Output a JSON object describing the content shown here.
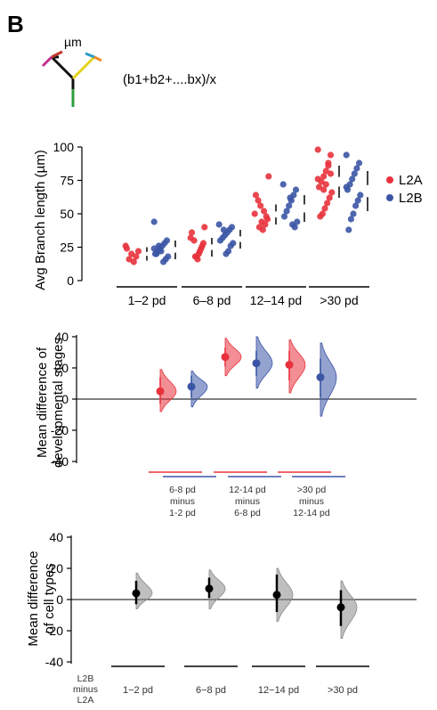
{
  "panel_label": "B",
  "schematic": {
    "unit": "µm",
    "formula": "(b1+b2+....bx)/x"
  },
  "colors": {
    "l2a": "#e8323c",
    "l2b": "#3b55a5",
    "gray": "#b5b5b5",
    "black": "#000000"
  },
  "chart_data": [
    {
      "type": "scatter",
      "title": "",
      "ylabel": "Avg Branch length (µm)",
      "ylim": [
        0,
        100
      ],
      "yticks": [
        0,
        25,
        50,
        75,
        100
      ],
      "categories": [
        "1–2 pd",
        "6–8 pd",
        "12–14 pd",
        ">30 pd"
      ],
      "legend_position": "right",
      "series": [
        {
          "name": "L2A",
          "color": "#e8323c",
          "values": [
            [
              26,
              22,
              18,
              14,
              20,
              16,
              24
            ],
            [
              32,
              28,
              24,
              20,
              18,
              30,
              36,
              40,
              26,
              22,
              16,
              18
            ],
            [
              50,
              46,
              42,
              38,
              56,
              60,
              64,
              78,
              48,
              52,
              44,
              40
            ],
            [
              98,
              94,
              86,
              82,
              78,
              74,
              70,
              66,
              62,
              58,
              54,
              50,
              48,
              76,
              80,
              88,
              72,
              68
            ]
          ],
          "whisker": [
            [
              15,
              25
            ],
            [
              18,
              32
            ],
            [
              42,
              57
            ],
            [
              62,
              86
            ]
          ]
        },
        {
          "name": "L2B",
          "color": "#3b55a5",
          "values": [
            [
              44,
              30,
              28,
              26,
              24,
              22,
              20,
              18,
              16,
              14,
              22,
              26,
              20,
              24
            ],
            [
              42,
              40,
              38,
              36,
              34,
              32,
              30,
              28,
              26,
              22,
              20,
              38
            ],
            [
              72,
              68,
              64,
              60,
              56,
              52,
              48,
              44,
              40,
              42,
              62
            ],
            [
              94,
              88,
              84,
              80,
              76,
              72,
              68,
              64,
              60,
              56,
              50,
              46,
              38,
              70
            ]
          ],
          "whisker": [
            [
              16,
              30
            ],
            [
              24,
              38
            ],
            [
              44,
              64
            ],
            [
              52,
              82
            ]
          ]
        }
      ]
    },
    {
      "type": "scatter",
      "title": "",
      "ylabel_lines": [
        "Mean difference of",
        "developmental stages"
      ],
      "ylim": [
        -40,
        40
      ],
      "yticks": [
        40,
        20,
        0,
        -20,
        -40
      ],
      "comparisons": [
        {
          "label_lines": [
            "6-8 pd",
            "minus",
            "1-2 pd"
          ],
          "L2A": {
            "mean": 5,
            "ci": [
              -3,
              14
            ],
            "dist": [
              -8,
              19
            ]
          },
          "L2B": {
            "mean": 8,
            "ci": [
              1,
              15
            ],
            "dist": [
              -5,
              18
            ]
          }
        },
        {
          "label_lines": [
            "12-14 pd",
            "minus",
            "6-8 pd"
          ],
          "L2A": {
            "mean": 27,
            "ci": [
              21,
              33
            ],
            "dist": [
              15,
              39
            ]
          },
          "L2B": {
            "mean": 23,
            "ci": [
              15,
              31
            ],
            "dist": [
              7,
              40
            ]
          }
        },
        {
          "label_lines": [
            ">30 pd",
            "minus",
            "12-14 pd"
          ],
          "L2A": {
            "mean": 22,
            "ci": [
              12,
              31
            ],
            "dist": [
              4,
              38
            ]
          },
          "L2B": {
            "mean": 14,
            "ci": [
              1,
              26
            ],
            "dist": [
              -11,
              36
            ]
          }
        }
      ]
    },
    {
      "type": "scatter",
      "title": "",
      "ylabel_lines": [
        "Mean difference",
        "of cell types"
      ],
      "ylim": [
        -40,
        40
      ],
      "yticks": [
        40,
        20,
        0,
        -20,
        -40
      ],
      "row_label_lines": [
        "L2B",
        "minus",
        "L2A"
      ],
      "categories": [
        "1−2 pd",
        "6−8 pd",
        "12−14 pd",
        ">30 pd"
      ],
      "values": [
        {
          "mean": 4,
          "ci": [
            -3,
            12
          ],
          "dist": [
            -6,
            17
          ]
        },
        {
          "mean": 7,
          "ci": [
            1,
            14
          ],
          "dist": [
            -6,
            19
          ]
        },
        {
          "mean": 3,
          "ci": [
            -8,
            16
          ],
          "dist": [
            -14,
            20
          ]
        },
        {
          "mean": -5,
          "ci": [
            -17,
            6
          ],
          "dist": [
            -25,
            12
          ]
        }
      ]
    }
  ]
}
